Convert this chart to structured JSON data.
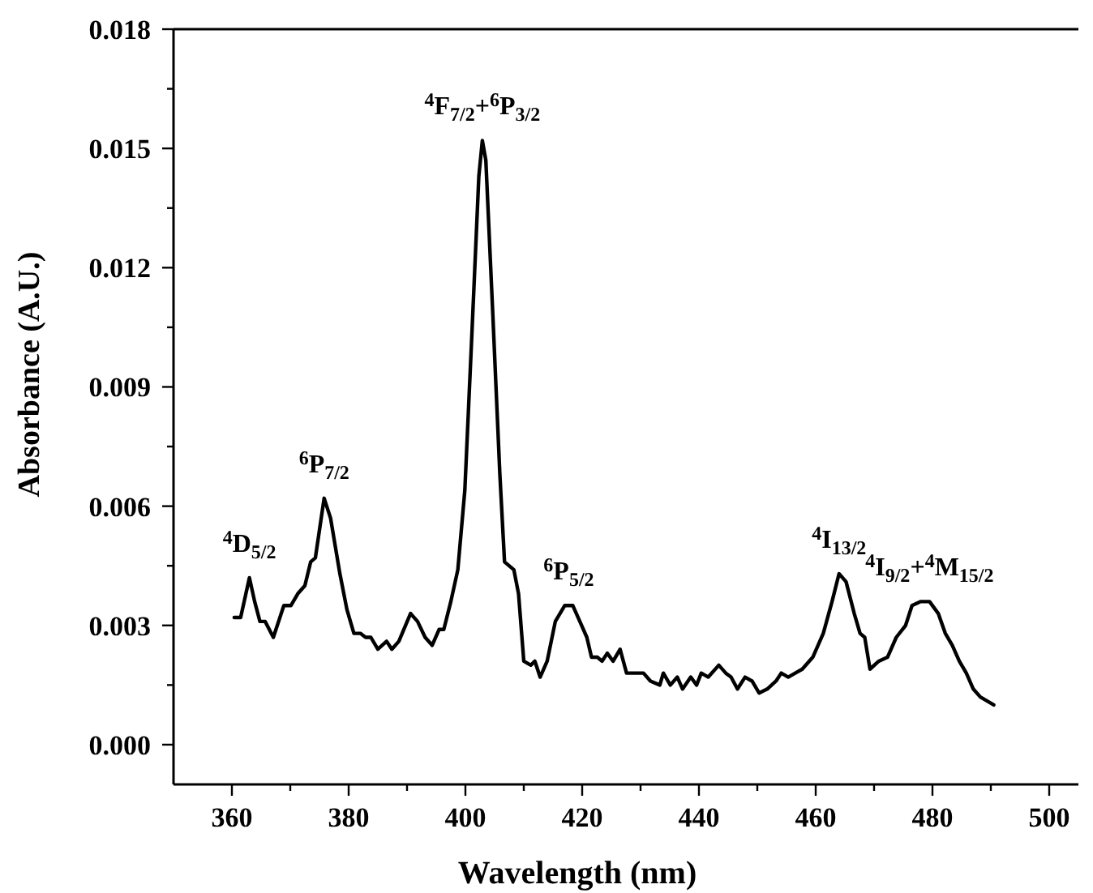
{
  "chart_data": {
    "type": "line",
    "xlabel": "Wavelength (nm)",
    "ylabel": "Absorbance (A.U.)",
    "color": "#000000",
    "xlim": [
      350,
      505
    ],
    "ylim": [
      -0.001,
      0.018
    ],
    "xticks": [
      360,
      {
        "value": 370,
        "label": null
      },
      380,
      {
        "value": 390,
        "label": null
      },
      400,
      {
        "value": 410,
        "label": null
      },
      420,
      {
        "value": 430,
        "label": null
      },
      440,
      {
        "value": 450,
        "label": null
      },
      460,
      {
        "value": 470,
        "label": null
      },
      480,
      {
        "value": 490,
        "label": null
      },
      500
    ],
    "yticks": [
      {
        "value": 0,
        "label": "0.000"
      },
      {
        "value": 0.0015,
        "label": null
      },
      {
        "value": 0.003,
        "label": "0.003"
      },
      {
        "value": 0.0045,
        "label": null
      },
      {
        "value": 0.006,
        "label": "0.006"
      },
      {
        "value": 0.0075,
        "label": null
      },
      {
        "value": 0.009,
        "label": "0.009"
      },
      {
        "value": 0.0105,
        "label": null
      },
      {
        "value": 0.012,
        "label": "0.012"
      },
      {
        "value": 0.0135,
        "label": null
      },
      {
        "value": 0.015,
        "label": "0.015"
      },
      {
        "value": 0.0165,
        "label": null
      },
      {
        "value": 0.018,
        "label": "0.018"
      }
    ],
    "x": [
      360.4,
      361.5,
      363.0,
      363.9,
      364.8,
      365.7,
      367.1,
      368.9,
      370.1,
      371.3,
      372.5,
      373.5,
      374.3,
      375.8,
      376.9,
      378.5,
      379.7,
      380.9,
      382.0,
      382.9,
      383.8,
      385.0,
      386.5,
      387.4,
      388.6,
      390.6,
      391.8,
      393.1,
      394.3,
      395.5,
      396.3,
      397.5,
      398.7,
      399.9,
      401.1,
      402.3,
      402.9,
      403.5,
      404.7,
      405.9,
      406.7,
      408.3,
      409.1,
      410.0,
      411.2,
      411.9,
      412.8,
      414.0,
      415.4,
      417.0,
      418.4,
      419.6,
      420.8,
      421.6,
      422.6,
      423.4,
      424.3,
      425.3,
      426.5,
      427.6,
      429.1,
      430.5,
      431.7,
      433.3,
      433.9,
      435.1,
      436.3,
      437.2,
      438.6,
      439.6,
      440.4,
      441.6,
      443.4,
      444.6,
      445.5,
      446.6,
      447.9,
      449.1,
      450.3,
      451.7,
      453.2,
      454.1,
      455.3,
      456.5,
      457.7,
      459.5,
      461.3,
      462.8,
      464.0,
      465.2,
      466.6,
      467.6,
      468.4,
      469.3,
      470.8,
      472.3,
      473.8,
      475.4,
      476.5,
      478.0,
      479.5,
      481.0,
      482.2,
      483.4,
      484.6,
      485.8,
      487.0,
      488.2,
      490.5
    ],
    "values": [
      0.0032,
      0.0032,
      0.0042,
      0.0036,
      0.0031,
      0.0031,
      0.0027,
      0.0035,
      0.0035,
      0.0038,
      0.004,
      0.0046,
      0.0047,
      0.0062,
      0.0057,
      0.0043,
      0.0034,
      0.0028,
      0.0028,
      0.0027,
      0.0027,
      0.0024,
      0.0026,
      0.0024,
      0.0026,
      0.0033,
      0.0031,
      0.0027,
      0.0025,
      0.0029,
      0.0029,
      0.0036,
      0.0044,
      0.0064,
      0.0103,
      0.0143,
      0.0152,
      0.0147,
      0.0108,
      0.0068,
      0.0046,
      0.0044,
      0.0038,
      0.0021,
      0.002,
      0.0021,
      0.0017,
      0.0021,
      0.0031,
      0.0035,
      0.0035,
      0.0031,
      0.0027,
      0.0022,
      0.0022,
      0.0021,
      0.0023,
      0.0021,
      0.0024,
      0.0018,
      0.0018,
      0.0018,
      0.0016,
      0.0015,
      0.0018,
      0.0015,
      0.0017,
      0.0014,
      0.0017,
      0.0015,
      0.0018,
      0.0017,
      0.002,
      0.0018,
      0.0017,
      0.0014,
      0.0017,
      0.0016,
      0.0013,
      0.0014,
      0.0016,
      0.0018,
      0.0017,
      0.0018,
      0.0019,
      0.0022,
      0.0028,
      0.0036,
      0.0043,
      0.0041,
      0.0033,
      0.0028,
      0.0027,
      0.0019,
      0.0021,
      0.0022,
      0.0027,
      0.003,
      0.0035,
      0.0036,
      0.0036,
      0.0033,
      0.0028,
      0.0025,
      0.0021,
      0.0018,
      0.0014,
      0.0012,
      0.001
    ],
    "annotations": [
      {
        "text": "$^{4}$D$_{5/2}$",
        "x": 363.0,
        "y": 0.0042
      },
      {
        "text": "$^{6}$P$_{7/2}$",
        "x": 375.8,
        "y": 0.0062
      },
      {
        "text": "$^{4}$F$_{7/2}$+$^{6}$P$_{3/2}$",
        "x": 402.9,
        "y": 0.0152
      },
      {
        "text": "$^{6}$P$_{5/2}$",
        "x": 417.7,
        "y": 0.0035
      },
      {
        "text": "$^{4}$I$_{13/2}$",
        "x": 464.0,
        "y": 0.0043
      },
      {
        "text": "$^{4}$I$_{9/2}$+$^{4}$M$_{15/2}$",
        "x": 479.5,
        "y": 0.0036
      }
    ]
  }
}
